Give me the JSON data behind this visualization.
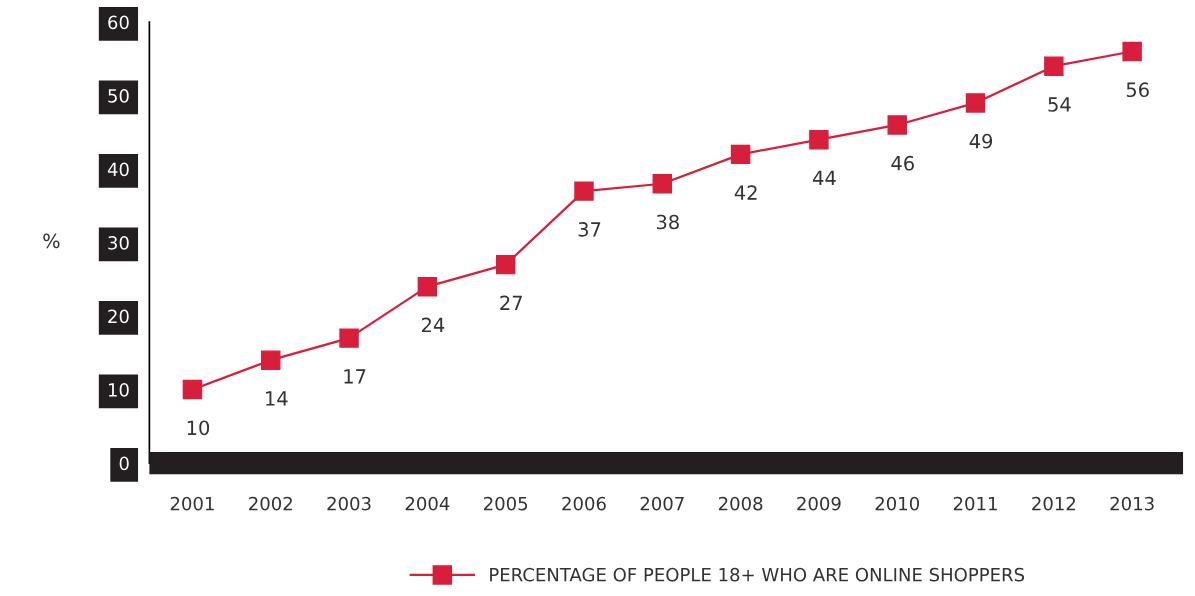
{
  "chart_data": {
    "type": "line",
    "ylabel": "%",
    "categories": [
      "2001",
      "2002",
      "2003",
      "2004",
      "2005",
      "2006",
      "2007",
      "2008",
      "2009",
      "2010",
      "2011",
      "2012",
      "2013"
    ],
    "series": [
      {
        "name": "PERCENTAGE OF PEOPLE 18+ WHO ARE ONLINE SHOPPERS",
        "color": "#d71f3c",
        "values": [
          10,
          14,
          17,
          24,
          27,
          37,
          38,
          42,
          44,
          46,
          49,
          54,
          56
        ]
      }
    ],
    "ylim": [
      0,
      60
    ],
    "yticks": [
      0,
      10,
      20,
      30,
      40,
      50,
      60
    ],
    "data_labels": true,
    "grid": false,
    "legend": "bottom",
    "marker": "square",
    "line_style": "solid"
  }
}
